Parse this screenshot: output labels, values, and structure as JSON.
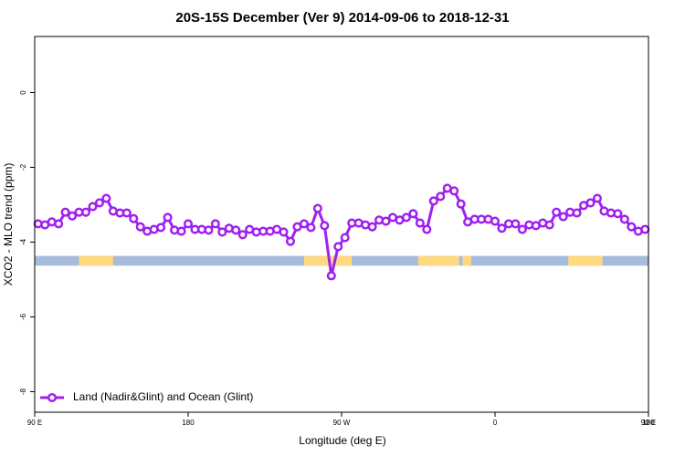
{
  "chart_data": {
    "type": "line",
    "title": "20S-15S December (Ver 9)   2014-09-06 to 2018-12-31",
    "x_label": "Longitude (deg E)",
    "y_label": "XCO2 - MLO trend (ppm)",
    "x": [
      92,
      96,
      100,
      104,
      108,
      112,
      116,
      120,
      124,
      128,
      132,
      136,
      140,
      144,
      148,
      152,
      156,
      160,
      164,
      168,
      172,
      176,
      180,
      184,
      188,
      192,
      196,
      200,
      204,
      208,
      212,
      216,
      220,
      224,
      228,
      232,
      236,
      240,
      244,
      248,
      252,
      256,
      260,
      264,
      268,
      272,
      276,
      280,
      284,
      288,
      292,
      296,
      300,
      304,
      308,
      312,
      316,
      320,
      324,
      328,
      332,
      336,
      340,
      344,
      348,
      352,
      356,
      360,
      364,
      368,
      372,
      376,
      380,
      384,
      388,
      392,
      396,
      400,
      404,
      408,
      412,
      416,
      420,
      424,
      428,
      432,
      436,
      440,
      444,
      448
    ],
    "series": [
      {
        "name": "Land (Nadir&Glint) and Ocean (Glint)",
        "color": "#a020f0",
        "values": [
          -3.51,
          -3.54,
          -3.46,
          -3.51,
          -3.2,
          -3.3,
          -3.2,
          -3.2,
          -3.05,
          -2.95,
          -2.83,
          -3.17,
          -3.22,
          -3.22,
          -3.37,
          -3.59,
          -3.71,
          -3.66,
          -3.61,
          -3.34,
          -3.68,
          -3.71,
          -3.51,
          -3.66,
          -3.66,
          -3.68,
          -3.51,
          -3.73,
          -3.63,
          -3.68,
          -3.8,
          -3.66,
          -3.73,
          -3.71,
          -3.71,
          -3.66,
          -3.73,
          -3.98,
          -3.59,
          -3.51,
          -3.61,
          -3.1,
          -3.56,
          -4.9,
          -4.12,
          -3.88,
          -3.49,
          -3.49,
          -3.54,
          -3.59,
          -3.41,
          -3.44,
          -3.34,
          -3.41,
          -3.34,
          -3.24,
          -3.49,
          -3.66,
          -2.9,
          -2.78,
          -2.56,
          -2.63,
          -2.98,
          -3.46,
          -3.39,
          -3.39,
          -3.39,
          -3.44,
          -3.63,
          -3.51,
          -3.51,
          -3.66,
          -3.54,
          -3.56,
          -3.49,
          -3.54,
          -3.2,
          -3.32,
          -3.2,
          -3.22,
          -3.02,
          -2.95,
          -2.83,
          -3.17,
          -3.22,
          -3.24,
          -3.39,
          -3.59,
          -3.71,
          -3.66
        ]
      }
    ],
    "surface_band": {
      "ylim": [
        -4.63,
        -4.37
      ],
      "ocean_color": "#a7bcdc",
      "land_color": "#ffd97f",
      "land": [
        [
          116,
          136
        ],
        [
          248,
          276
        ],
        [
          315,
          339
        ],
        [
          341,
          346
        ],
        [
          403,
          423
        ]
      ]
    },
    "xlim": [
      90,
      450
    ],
    "xticks": [
      {
        "value": 90,
        "label": "90 E"
      },
      {
        "value": 180,
        "label": "180"
      },
      {
        "value": 270,
        "label": "90 W"
      },
      {
        "value": 360,
        "label": "0"
      },
      {
        "value": 450,
        "label": "90 E"
      },
      {
        "value": 540,
        "label": "180"
      }
    ],
    "ylim": [
      -8.55,
      1.5
    ],
    "yticks": [
      0,
      -2,
      -4,
      -6,
      -8
    ],
    "legend": "bottom-left"
  }
}
